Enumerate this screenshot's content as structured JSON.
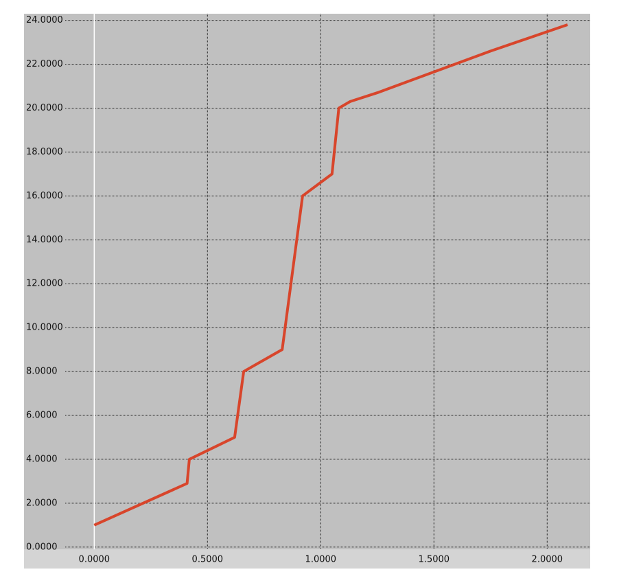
{
  "chart_data": {
    "type": "line",
    "x": [
      0,
      0.41,
      0.42,
      0.62,
      0.66,
      0.83,
      0.92,
      1.05,
      1.08,
      1.13,
      1.25,
      1.75,
      2.09
    ],
    "series": [
      {
        "color": "#d8452b",
        "values": [
          1,
          2.9,
          4.0,
          5.0,
          8.0,
          9.0,
          16.0,
          17.0,
          20.0,
          20.3,
          20.7,
          22.6,
          23.8
        ]
      }
    ],
    "xlim": [
      -0.31,
      2.19
    ],
    "ylim": [
      -0.1,
      24.3
    ],
    "xticks": [
      {
        "value": 0,
        "label": "0.0000"
      },
      {
        "value": 0.5,
        "label": "0.5000"
      },
      {
        "value": 1,
        "label": "1.0000"
      },
      {
        "value": 1.5,
        "label": "1.5000"
      },
      {
        "value": 2,
        "label": "2.0000"
      }
    ],
    "yticks": [
      {
        "value": 0,
        "label": "0.0000"
      },
      {
        "value": 2,
        "label": "2.0000"
      },
      {
        "value": 4,
        "label": "4.0000"
      },
      {
        "value": 6,
        "label": "6.0000"
      },
      {
        "value": 8,
        "label": "8.0000"
      },
      {
        "value": 10,
        "label": "10.0000"
      },
      {
        "value": 12,
        "label": "12.0000"
      },
      {
        "value": 14,
        "label": "14.0000"
      },
      {
        "value": 16,
        "label": "16.0000"
      },
      {
        "value": 18,
        "label": "18.0000"
      },
      {
        "value": 20,
        "label": "20.0000"
      },
      {
        "value": 22,
        "label": "22.0000"
      },
      {
        "value": 24,
        "label": "24.0000"
      }
    ],
    "grid": true
  }
}
